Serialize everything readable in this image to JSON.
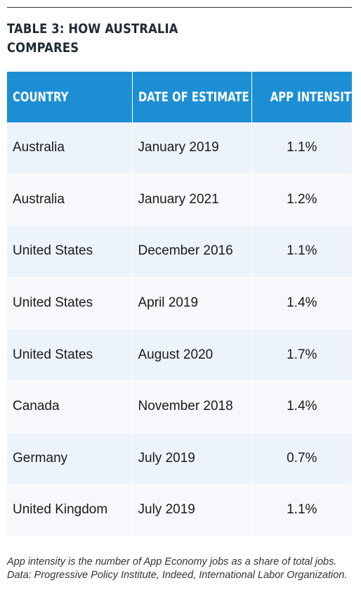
{
  "title_lines": [
    "TABLE 3: HOW AUSTRALIA",
    "COMPARES"
  ],
  "table": {
    "headers": [
      "COUNTRY",
      "DATE OF ESTIMATE",
      "APP INTENSITY"
    ],
    "rows": [
      [
        "Australia",
        "January 2019",
        "1.1%"
      ],
      [
        "Australia",
        "January 2021",
        "1.2%"
      ],
      [
        "United States",
        "December 2016",
        "1.1%"
      ],
      [
        "United States",
        "April 2019",
        "1.4%"
      ],
      [
        "United States",
        "August 2020",
        "1.7%"
      ],
      [
        "Canada",
        "November 2018",
        "1.4%"
      ],
      [
        "Germany",
        "July 2019",
        "0.7%"
      ],
      [
        "United Kingdom",
        "July 2019",
        "1.1%"
      ]
    ]
  },
  "footnote": "App intensity is the number of App Economy jobs as a share of total jobs. Data: Progressive Policy Institute, Indeed, International Labor Organization.",
  "colors": {
    "header_bg": "#1c8fd4",
    "row_odd_bg": "#edf3fb",
    "row_even_bg": "#f6f8fc"
  }
}
